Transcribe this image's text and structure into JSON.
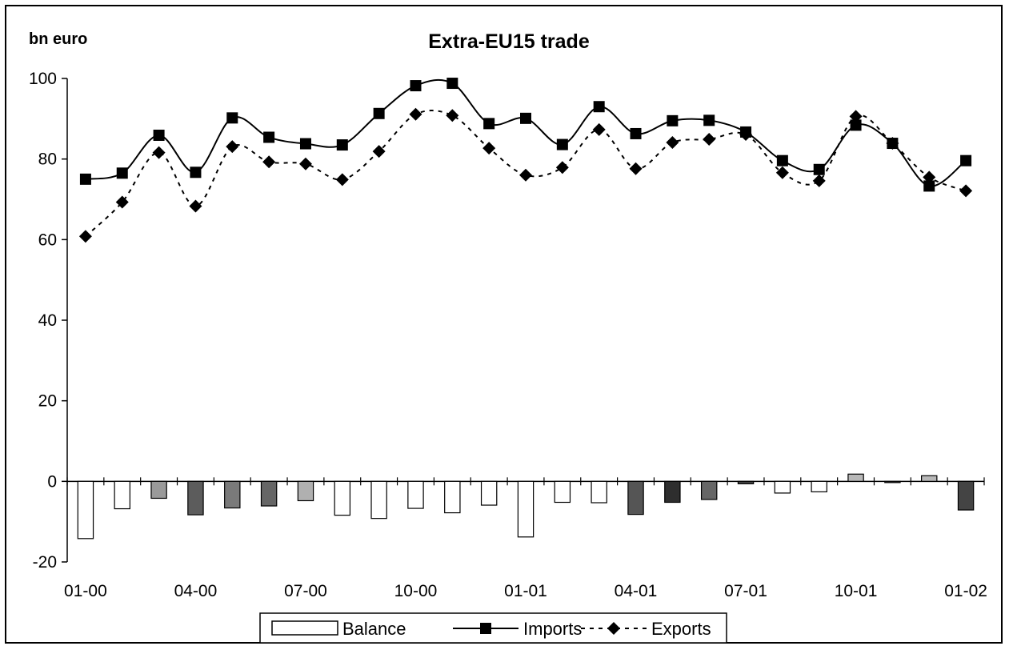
{
  "chart_data": {
    "type": "line",
    "title": "Extra-EU15 trade",
    "unit_label": "bn euro",
    "ylim": [
      -20,
      100
    ],
    "y_ticks": [
      -20,
      0,
      20,
      40,
      60,
      80,
      100
    ],
    "x_tick_labels": [
      "01-00",
      "04-00",
      "07-00",
      "10-00",
      "01-01",
      "04-01",
      "07-01",
      "10-01",
      "01-02"
    ],
    "categories": [
      "01-00",
      "02-00",
      "03-00",
      "04-00",
      "05-00",
      "06-00",
      "07-00",
      "08-00",
      "09-00",
      "10-00",
      "11-00",
      "12-00",
      "01-01",
      "02-01",
      "03-01",
      "04-01",
      "05-01",
      "06-01",
      "07-01",
      "08-01",
      "09-01",
      "10-01",
      "11-01",
      "12-01",
      "01-02"
    ],
    "series": [
      {
        "name": "Balance",
        "kind": "bar",
        "values": [
          -14.2,
          -6.8,
          -4.2,
          -8.3,
          -6.6,
          -6.1,
          -4.8,
          -8.4,
          -9.2,
          -6.7,
          -7.8,
          -5.9,
          -13.8,
          -5.2,
          -5.3,
          -8.2,
          -5.2,
          -4.5,
          -0.6,
          -2.9,
          -2.6,
          1.8,
          -0.2,
          1.4,
          -7.1
        ],
        "colors": [
          "#ffffff",
          "#ffffff",
          "#9a9a9a",
          "#5c5c5c",
          "#7a7a7a",
          "#666666",
          "#b0b0b0",
          "#ffffff",
          "#ffffff",
          "#ffffff",
          "#ffffff",
          "#ffffff",
          "#ffffff",
          "#ffffff",
          "#ffffff",
          "#555555",
          "#2e2e2e",
          "#666666",
          "#444444",
          "#ffffff",
          "#ffffff",
          "#b8b8b8",
          "#444444",
          "#b8b8b8",
          "#444444"
        ]
      },
      {
        "name": "Imports",
        "kind": "line",
        "marker": "square",
        "values": [
          75.0,
          76.5,
          85.9,
          76.7,
          90.2,
          85.4,
          83.8,
          83.5,
          91.3,
          98.2,
          98.8,
          88.8,
          90.1,
          83.6,
          93.0,
          86.3,
          89.5,
          89.6,
          86.7,
          79.6,
          77.4,
          88.4,
          83.9,
          73.3,
          79.6
        ]
      },
      {
        "name": "Exports",
        "kind": "line",
        "marker": "diamond",
        "dashed": true,
        "values": [
          60.8,
          69.3,
          81.6,
          68.3,
          83.1,
          79.3,
          78.8,
          74.9,
          81.9,
          91.1,
          90.8,
          82.7,
          76.0,
          77.9,
          87.3,
          77.6,
          84.1,
          84.9,
          86.1,
          76.6,
          74.6,
          90.6,
          83.9,
          75.5,
          72.1
        ]
      }
    ],
    "legend": {
      "position": "bottom",
      "items": [
        "Balance",
        "Imports",
        "Exports"
      ]
    },
    "grid": false,
    "colors": {
      "line": "#000000",
      "axis": "#000000",
      "background": "#ffffff"
    }
  }
}
